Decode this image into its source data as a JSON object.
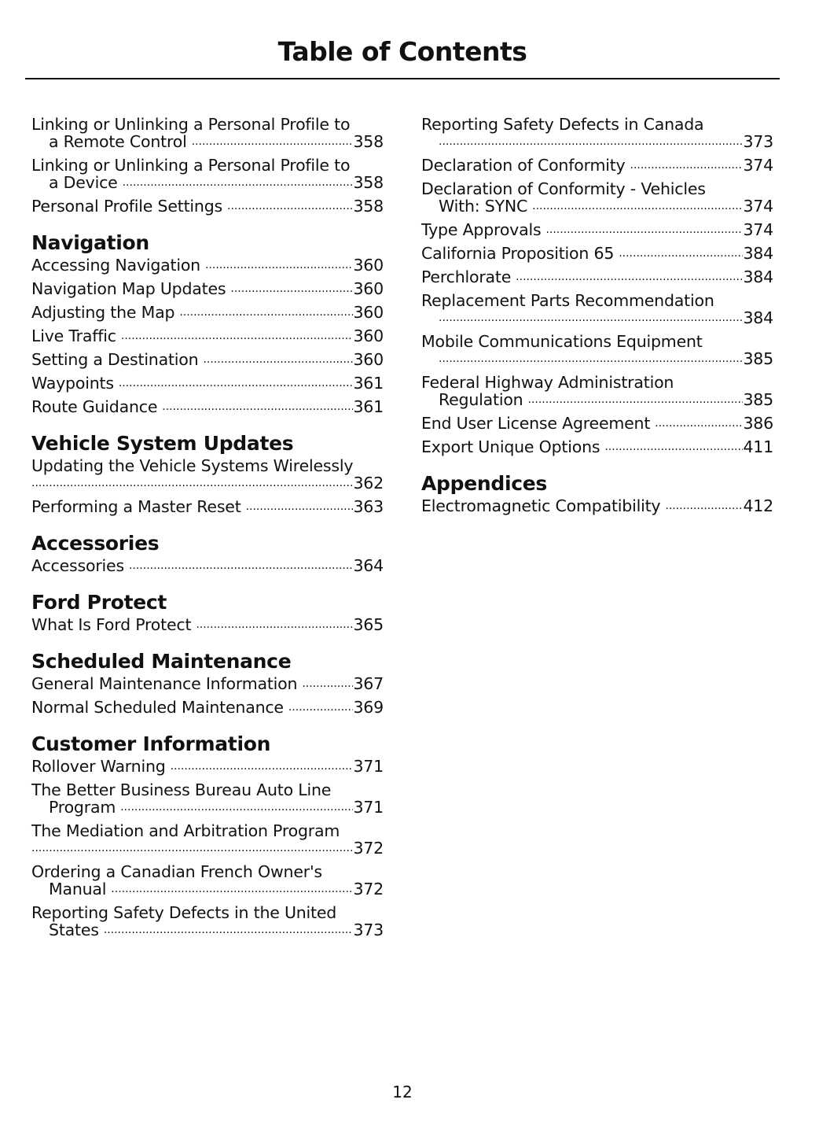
{
  "title": "Table of Contents",
  "page_number": "12",
  "columns": [
    [
      {
        "entries": [
          {
            "title": "Linking or Unlinking a Personal Profile to",
            "cont": "a Remote Control",
            "page": "358"
          },
          {
            "title": "Linking or Unlinking a Personal Profile to",
            "cont": "a Device",
            "page": "358"
          },
          {
            "title": "Personal Profile Settings",
            "page": "358"
          }
        ]
      },
      {
        "heading": "Navigation",
        "entries": [
          {
            "title": "Accessing Navigation",
            "page": "360"
          },
          {
            "title": "Navigation Map Updates",
            "page": "360"
          },
          {
            "title": "Adjusting the Map",
            "page": "360"
          },
          {
            "title": "Live Traffic",
            "page": "360"
          },
          {
            "title": "Setting a Destination",
            "page": "360"
          },
          {
            "title": "Waypoints",
            "page": "361"
          },
          {
            "title": "Route Guidance",
            "page": "361"
          }
        ]
      },
      {
        "heading": "Vehicle System Updates",
        "entries": [
          {
            "title": "Updating the Vehicle Systems Wirelessly",
            "cont": "",
            "page": "362",
            "noindent": true
          },
          {
            "title": "Performing a Master Reset",
            "page": "363"
          }
        ]
      },
      {
        "heading": "Accessories",
        "entries": [
          {
            "title": "Accessories",
            "page": "364"
          }
        ]
      },
      {
        "heading": "Ford Protect",
        "entries": [
          {
            "title": "What Is Ford Protect",
            "page": "365"
          }
        ]
      },
      {
        "heading": "Scheduled Maintenance",
        "entries": [
          {
            "title": "General Maintenance Information",
            "page": "367"
          },
          {
            "title": "Normal Scheduled Maintenance",
            "page": "369"
          }
        ]
      },
      {
        "heading": "Customer Information",
        "entries": [
          {
            "title": "Rollover Warning",
            "page": "371"
          },
          {
            "title": "The Better Business Bureau Auto Line",
            "cont": "Program",
            "page": "371"
          },
          {
            "title": "The Mediation and Arbitration Program",
            "cont": "",
            "page": "372",
            "noindent": true
          },
          {
            "title": "Ordering a Canadian French Owner's",
            "cont": "Manual",
            "page": "372"
          },
          {
            "title": "Reporting Safety Defects in the United",
            "cont": "States",
            "page": "373"
          }
        ]
      }
    ],
    [
      {
        "entries": [
          {
            "title": "Reporting Safety Defects in Canada",
            "cont": "",
            "page": "373"
          },
          {
            "title": "Declaration of Conformity",
            "page": "374"
          },
          {
            "title": "Declaration of Conformity - Vehicles",
            "cont": "With: SYNC",
            "page": "374"
          },
          {
            "title": "Type Approvals",
            "page": "374"
          },
          {
            "title": "California Proposition 65",
            "page": "384"
          },
          {
            "title": "Perchlorate",
            "page": "384"
          },
          {
            "title": "Replacement Parts Recommendation",
            "cont": "",
            "page": "384"
          },
          {
            "title": "Mobile Communications Equipment",
            "cont": "",
            "page": "385"
          },
          {
            "title": "Federal Highway Administration",
            "cont": "Regulation",
            "page": "385"
          },
          {
            "title": "End User License Agreement",
            "page": "386"
          },
          {
            "title": "Export Unique Options",
            "page": "411"
          }
        ]
      },
      {
        "heading": "Appendices",
        "entries": [
          {
            "title": "Electromagnetic Compatibility",
            "page": "412"
          }
        ]
      }
    ]
  ]
}
